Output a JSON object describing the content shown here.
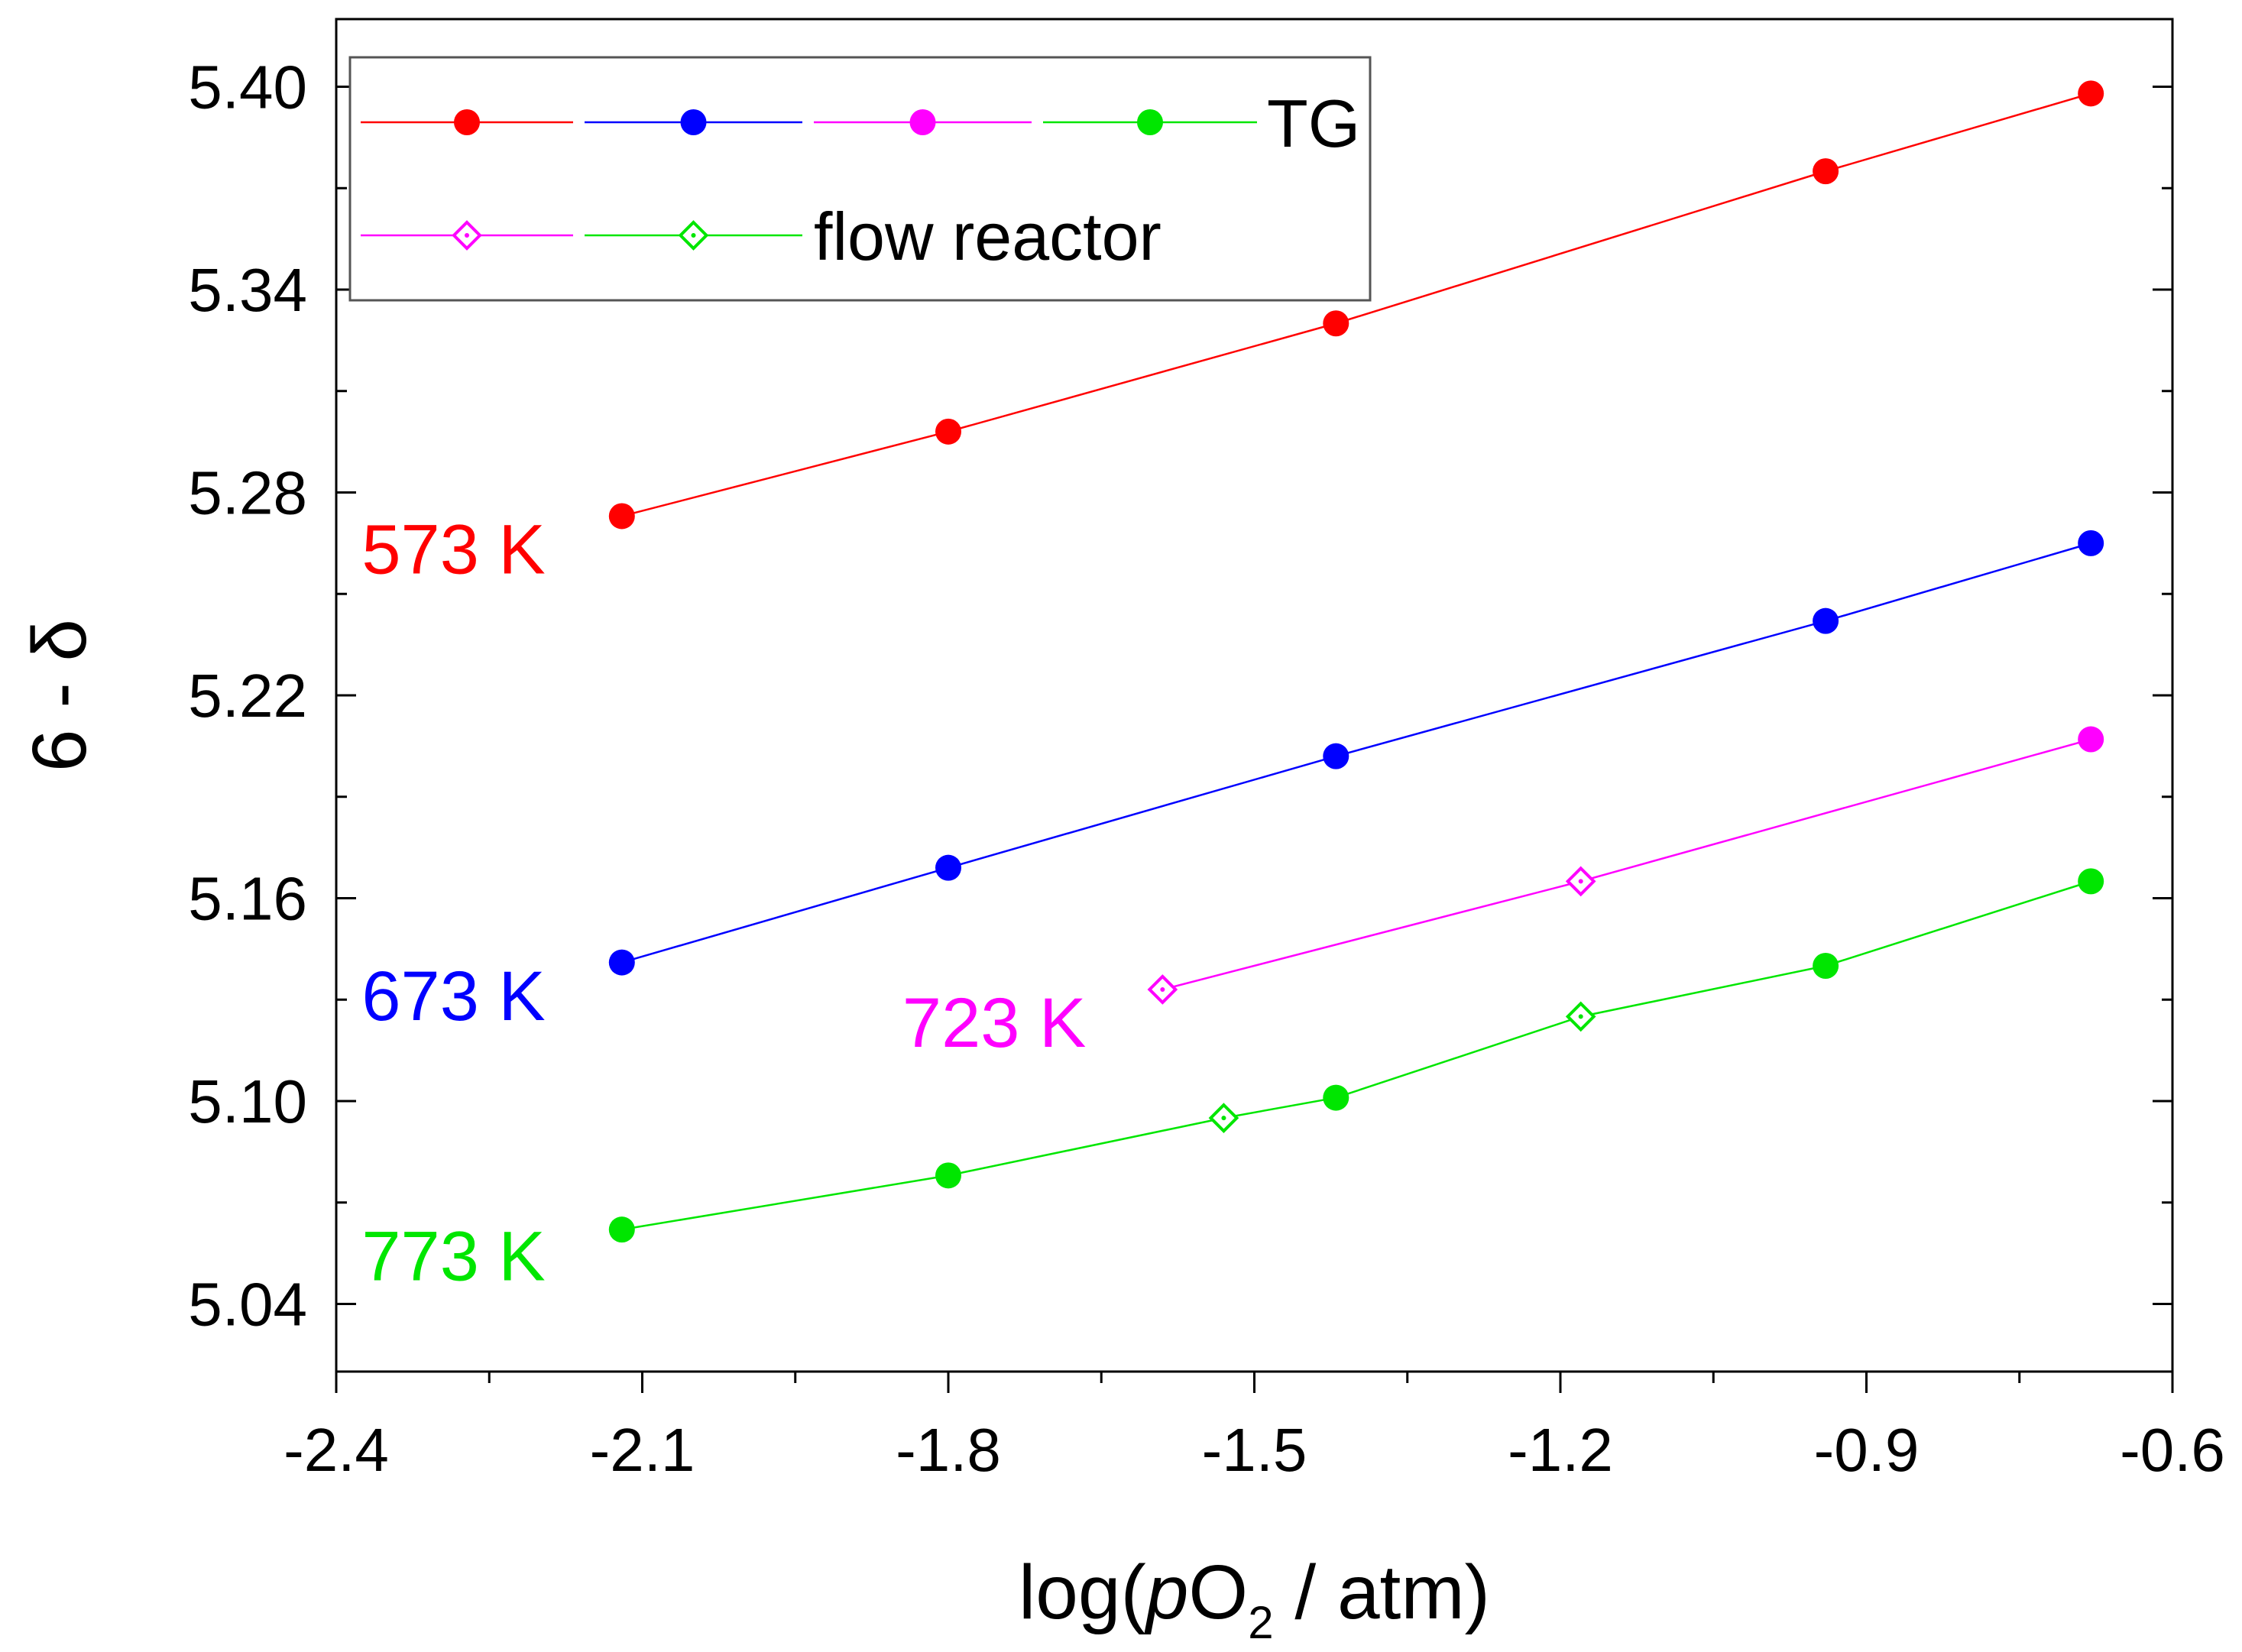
{
  "colors": {
    "axis": "#000000",
    "red": "#ff0000",
    "blue": "#0000ff",
    "magenta": "#ff00ff",
    "green": "#00e600",
    "legend_border": "#555555"
  },
  "chart_data": {
    "type": "line",
    "xlabel": {
      "prefix": "log(",
      "italic": "p",
      "mid": "O",
      "sub": "2",
      "suffix": " / atm)"
    },
    "ylabel": "6 - δ",
    "xlim": [
      -2.4,
      -0.6
    ],
    "ylim": [
      5.02,
      5.42
    ],
    "x_ticks": [
      -2.4,
      -2.1,
      -1.8,
      -1.5,
      -1.2,
      -0.9,
      -0.6
    ],
    "x_tick_labels": [
      "-2.4",
      "-2.1",
      "-1.8",
      "-1.5",
      "-1.2",
      "-0.9",
      "-0.6"
    ],
    "y_ticks": [
      5.04,
      5.1,
      5.16,
      5.22,
      5.28,
      5.34,
      5.4
    ],
    "y_tick_labels": [
      "5.04",
      "5.10",
      "5.16",
      "5.22",
      "5.28",
      "5.34",
      "5.40"
    ],
    "grid": false,
    "legend": {
      "position": "top-left",
      "entries": [
        {
          "label": "TG",
          "marker": "filled-circle",
          "colors": [
            "red",
            "blue",
            "magenta",
            "green"
          ]
        },
        {
          "label": "flow reactor",
          "marker": "open-diamond",
          "colors": [
            "magenta",
            "green"
          ]
        }
      ]
    },
    "series": [
      {
        "name": "573 K",
        "color": "red",
        "line_x": [
          -2.12,
          -1.8,
          -1.42,
          -0.94,
          -0.68
        ],
        "line_y": [
          5.273,
          5.298,
          5.33,
          5.375,
          5.398
        ],
        "tg": [
          [
            -2.12,
            5.273
          ],
          [
            -1.8,
            5.298
          ],
          [
            -1.42,
            5.33
          ],
          [
            -0.94,
            5.375
          ],
          [
            -0.68,
            5.398
          ]
        ],
        "flow": []
      },
      {
        "name": "673 K",
        "color": "blue",
        "line_x": [
          -2.12,
          -1.8,
          -1.42,
          -0.94,
          -0.68
        ],
        "line_y": [
          5.141,
          5.169,
          5.202,
          5.242,
          5.265
        ],
        "tg": [
          [
            -2.12,
            5.141
          ],
          [
            -1.8,
            5.169
          ],
          [
            -1.42,
            5.202
          ],
          [
            -0.94,
            5.242
          ],
          [
            -0.68,
            5.265
          ]
        ],
        "flow": []
      },
      {
        "name": "723 K",
        "color": "magenta",
        "line_x": [
          -1.59,
          -1.18,
          -0.68
        ],
        "line_y": [
          5.133,
          5.165,
          5.207
        ],
        "tg": [
          [
            -0.68,
            5.207
          ]
        ],
        "flow": [
          [
            -1.59,
            5.133
          ],
          [
            -1.18,
            5.165
          ]
        ]
      },
      {
        "name": "773 K",
        "color": "green",
        "line_x": [
          -2.12,
          -1.8,
          -1.53,
          -1.42,
          -1.18,
          -0.94,
          -0.68
        ],
        "line_y": [
          5.062,
          5.078,
          5.095,
          5.101,
          5.125,
          5.14,
          5.165
        ],
        "tg": [
          [
            -2.12,
            5.062
          ],
          [
            -1.8,
            5.078
          ],
          [
            -1.42,
            5.101
          ],
          [
            -0.94,
            5.14
          ],
          [
            -0.68,
            5.165
          ]
        ],
        "flow": [
          [
            -1.53,
            5.095
          ],
          [
            -1.18,
            5.125
          ]
        ]
      }
    ],
    "annotations": [
      {
        "text": "573 K",
        "color": "red",
        "at": [
          -2.375,
          5.256
        ]
      },
      {
        "text": "673 K",
        "color": "blue",
        "at": [
          -2.375,
          5.124
        ]
      },
      {
        "text": "723 K",
        "color": "magenta",
        "at": [
          -1.845,
          5.116
        ]
      },
      {
        "text": "773 K",
        "color": "green",
        "at": [
          -2.375,
          5.047
        ]
      }
    ]
  }
}
